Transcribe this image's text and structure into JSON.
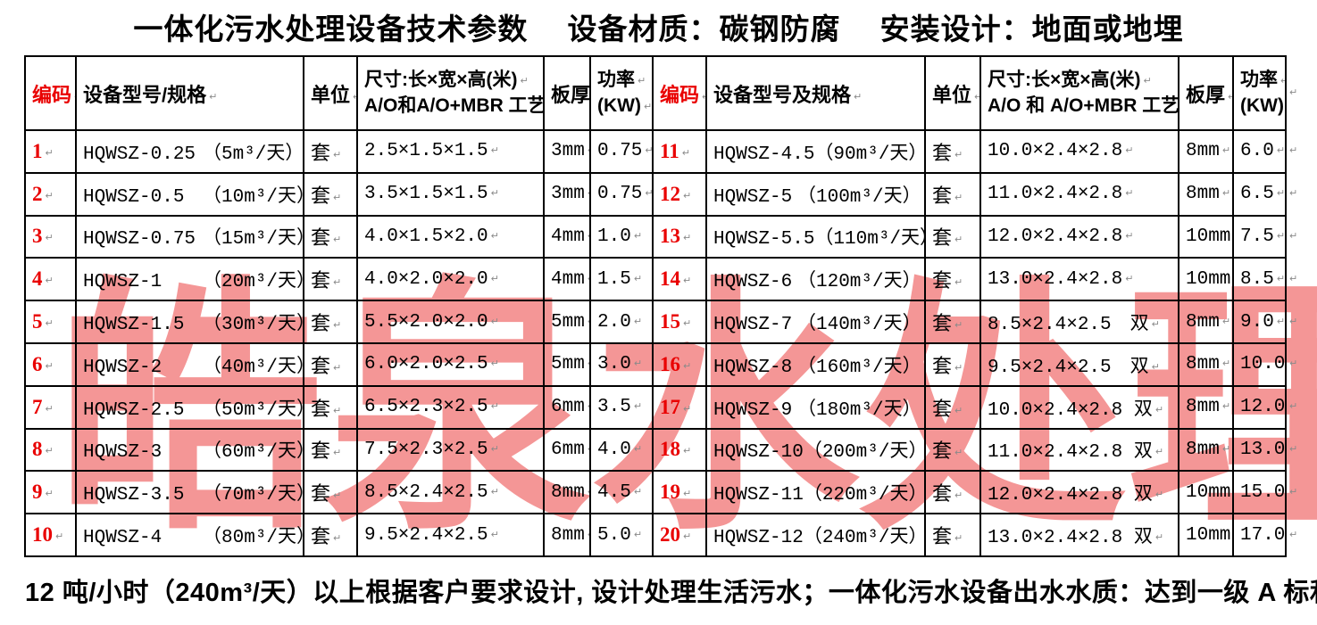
{
  "title": "一体化污水处理设备技术参数　 设备材质：碳钢防腐　 安装设计：地面或地埋",
  "watermark": "皓泉水处理",
  "colors": {
    "code_red": "#e90000",
    "watermark_pink": "#f49696",
    "border_black": "#000000"
  },
  "footer": "12 吨/小时（240m³/天）以上根据客户要求设计, 设计处理生活污水；一体化污水设备出水水质：达到一级 A 标和一级 B 标",
  "halves": [
    {
      "header": {
        "code": "编码",
        "model": "设备型号/规格",
        "unit": "单位",
        "size_line1": "尺寸:长×宽×高(米)",
        "size_line2": "A/O和A/O+MBR 工艺尺寸",
        "thickness": "板厚",
        "power_line1": "功率",
        "power_line2": "(KW)"
      },
      "rows": [
        {
          "code": "1",
          "model": "HQWSZ-0.25",
          "spec": "（5m³/天）",
          "unit": "套",
          "size": "2.5×1.5×1.5",
          "thickness": "3mm",
          "power": "0.75"
        },
        {
          "code": "2",
          "model": "HQWSZ-0.5",
          "spec": "（10m³/天）",
          "unit": "套",
          "size": "3.5×1.5×1.5",
          "thickness": "3mm",
          "power": "0.75"
        },
        {
          "code": "3",
          "model": "HQWSZ-0.75",
          "spec": "（15m³/天）",
          "unit": "套",
          "size": "4.0×1.5×2.0",
          "thickness": "4mm",
          "power": "1.0"
        },
        {
          "code": "4",
          "model": "HQWSZ-1",
          "spec": "（20m³/天）",
          "unit": "套",
          "size": "4.0×2.0×2.0",
          "thickness": "4mm",
          "power": "1.5"
        },
        {
          "code": "5",
          "model": "HQWSZ-1.5",
          "spec": "（30m³/天）",
          "unit": "套",
          "size": "5.5×2.0×2.0",
          "thickness": "5mm",
          "power": "2.0"
        },
        {
          "code": "6",
          "model": "HQWSZ-2",
          "spec": "（40m³/天）",
          "unit": "套",
          "size": "6.0×2.0×2.5",
          "thickness": "5mm",
          "power": "3.0"
        },
        {
          "code": "7",
          "model": "HQWSZ-2.5",
          "spec": "（50m³/天）",
          "unit": "套",
          "size": "6.5×2.3×2.5",
          "thickness": "6mm",
          "power": "3.5"
        },
        {
          "code": "8",
          "model": "HQWSZ-3",
          "spec": "（60m³/天）",
          "unit": "套",
          "size": "7.5×2.3×2.5",
          "thickness": "6mm",
          "power": "4.0"
        },
        {
          "code": "9",
          "model": "HQWSZ-3.5",
          "spec": "（70m³/天）",
          "unit": "套",
          "size": "8.5×2.4×2.5",
          "thickness": "8mm",
          "power": "4.5"
        },
        {
          "code": "10",
          "model": "HQWSZ-4",
          "spec": "（80m³/天）",
          "unit": "套",
          "size": "9.5×2.4×2.5",
          "thickness": "8mm",
          "power": "5.0"
        }
      ]
    },
    {
      "header": {
        "code": "编码",
        "model": "设备型号及规格",
        "unit": "单位",
        "size_line1": "尺寸:长×宽×高(米)",
        "size_line2": "A/O 和 A/O+MBR 工艺尺寸",
        "thickness": "板厚",
        "power_line1": "功率",
        "power_line2": "(KW)"
      },
      "rows": [
        {
          "code": "11",
          "model": "HQWSZ-4.5",
          "spec": "（90m³/天）",
          "unit": "套",
          "size": "10.0×2.4×2.8",
          "thickness": "8mm",
          "power": "6.0"
        },
        {
          "code": "12",
          "model": "HQWSZ-5",
          "spec": "（100m³/天）",
          "unit": "套",
          "size": "11.0×2.4×2.8",
          "thickness": "8mm",
          "power": "6.5"
        },
        {
          "code": "13",
          "model": "HQWSZ-5.5",
          "spec": "（110m³/天）",
          "unit": "套",
          "size": "12.0×2.4×2.8",
          "thickness": "10mm",
          "power": "7.5"
        },
        {
          "code": "14",
          "model": "HQWSZ-6",
          "spec": "（120m³/天）",
          "unit": "套",
          "size": "13.0×2.4×2.8",
          "thickness": "10mm",
          "power": "8.5"
        },
        {
          "code": "15",
          "model": "HQWSZ-7",
          "spec": "（140m³/天）",
          "unit": "套",
          "size": "8.5×2.4×2.5　双",
          "thickness": "8mm",
          "power": "9.0"
        },
        {
          "code": "16",
          "model": "HQWSZ-8",
          "spec": "（160m³/天）",
          "unit": "套",
          "size": "9.5×2.4×2.5　双",
          "thickness": "8mm",
          "power": "10.0"
        },
        {
          "code": "17",
          "model": "HQWSZ-9",
          "spec": "（180m³/天）",
          "unit": "套",
          "size": "10.0×2.4×2.8 双",
          "thickness": "8mm",
          "power": "12.0"
        },
        {
          "code": "18",
          "model": "HQWSZ-10",
          "spec": "（200m³/天）",
          "unit": "套",
          "size": "11.0×2.4×2.8 双",
          "thickness": "8mm",
          "power": "13.0"
        },
        {
          "code": "19",
          "model": "HQWSZ-11",
          "spec": "（220m³/天）",
          "unit": "套",
          "size": "12.0×2.4×2.8 双",
          "thickness": "10mm",
          "power": "15.0"
        },
        {
          "code": "20",
          "model": "HQWSZ-12",
          "spec": "（240m³/天）",
          "unit": "套",
          "size": "13.0×2.4×2.8 双",
          "thickness": "10mm",
          "power": "17.0"
        }
      ]
    }
  ]
}
